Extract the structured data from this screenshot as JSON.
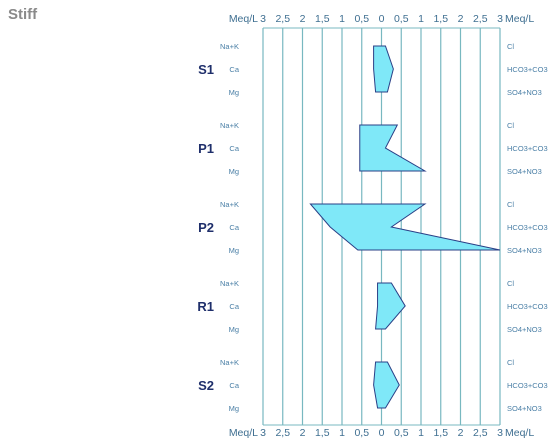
{
  "title": "Stiff",
  "colors": {
    "grid": "#78b8c0",
    "polygon_fill": "#7fe8f8",
    "polygon_stroke": "#2a3f86",
    "text": "#3f6f91",
    "sample_label": "#1f2f6b"
  },
  "chart_data": {
    "type": "stiff",
    "unit_label": "Meq/L",
    "ticks": [
      "3",
      "2,5",
      "2",
      "1,5",
      "1",
      "0,5",
      "0",
      "0,5",
      "1",
      "1,5",
      "2",
      "2,5",
      "3"
    ],
    "xlim": [
      -3,
      3
    ],
    "left_ions": [
      "Na+K",
      "Ca",
      "Mg"
    ],
    "right_ions": [
      "Cl",
      "HCO3+CO3",
      "SO4+NO3"
    ],
    "grid": true,
    "samples": [
      {
        "name": "S1",
        "left": [
          0.2,
          0.2,
          0.15
        ],
        "right": [
          0.1,
          0.3,
          0.15
        ]
      },
      {
        "name": "P1",
        "left": [
          0.55,
          0.55,
          0.55
        ],
        "right": [
          0.4,
          0.1,
          1.1
        ]
      },
      {
        "name": "P2",
        "left": [
          1.8,
          1.3,
          0.6
        ],
        "right": [
          1.1,
          0.25,
          3.0
        ]
      },
      {
        "name": "R1",
        "left": [
          0.1,
          0.1,
          0.15
        ],
        "right": [
          0.25,
          0.6,
          0.1
        ]
      },
      {
        "name": "S2",
        "left": [
          0.15,
          0.2,
          0.1
        ],
        "right": [
          0.15,
          0.45,
          0.1
        ]
      }
    ]
  }
}
